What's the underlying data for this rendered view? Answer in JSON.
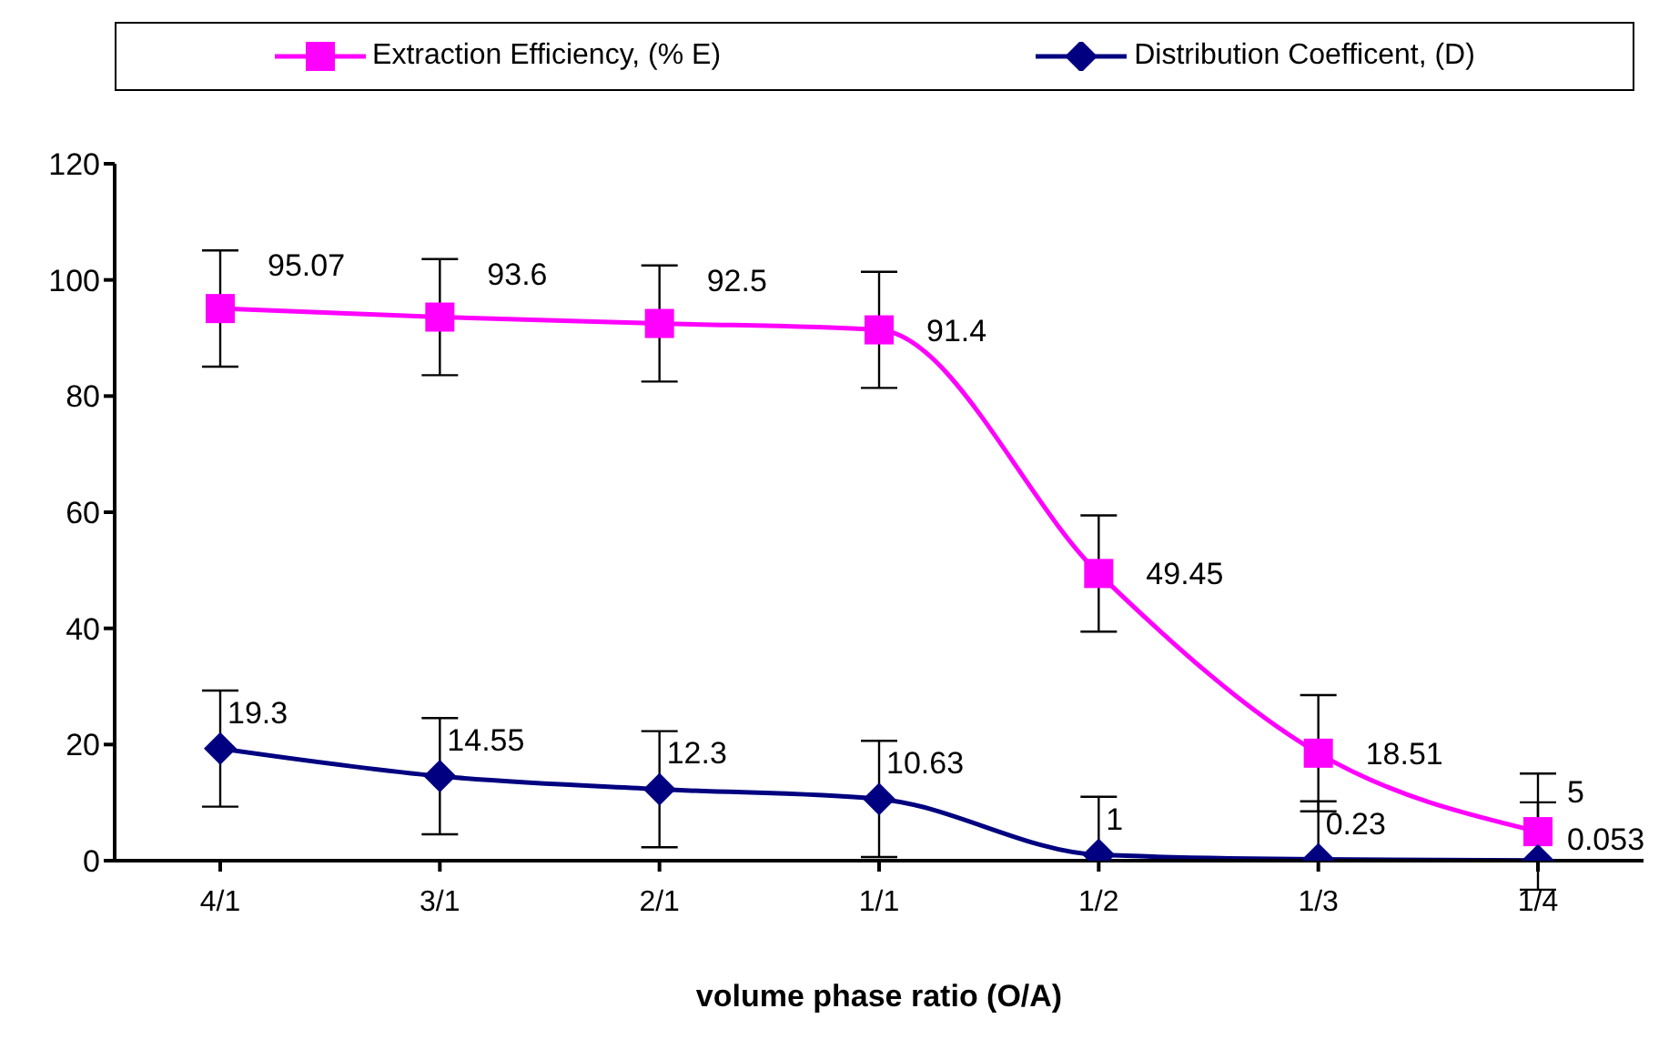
{
  "chart_data": {
    "type": "line",
    "xlabel": "volume phase ratio (O/A)",
    "categories": [
      "4/1",
      "3/1",
      "2/1",
      "1/1",
      "1/2",
      "1/3",
      "1/4"
    ],
    "series": [
      {
        "name": "Extraction Efficiency, (% E)",
        "color": "#ff00ff",
        "marker": "square",
        "values": [
          95.07,
          93.6,
          92.5,
          91.4,
          49.45,
          18.51,
          5
        ],
        "errors": [
          10,
          10,
          10,
          10,
          10,
          10,
          10
        ]
      },
      {
        "name": "Distribution Coefficent, (D)",
        "color": "#000080",
        "marker": "diamond",
        "values": [
          19.3,
          14.55,
          12.3,
          10.63,
          1,
          0.23,
          0.053
        ],
        "errors": [
          10,
          10,
          10,
          10,
          [
            0,
            11
          ],
          [
            0,
            10.23
          ],
          [
            0,
            10.053
          ]
        ]
      }
    ],
    "ylim": [
      0,
      120
    ],
    "yticks": [
      0,
      20,
      40,
      60,
      80,
      100,
      120
    ],
    "grid": false,
    "legend": "top",
    "data_labels": true
  }
}
